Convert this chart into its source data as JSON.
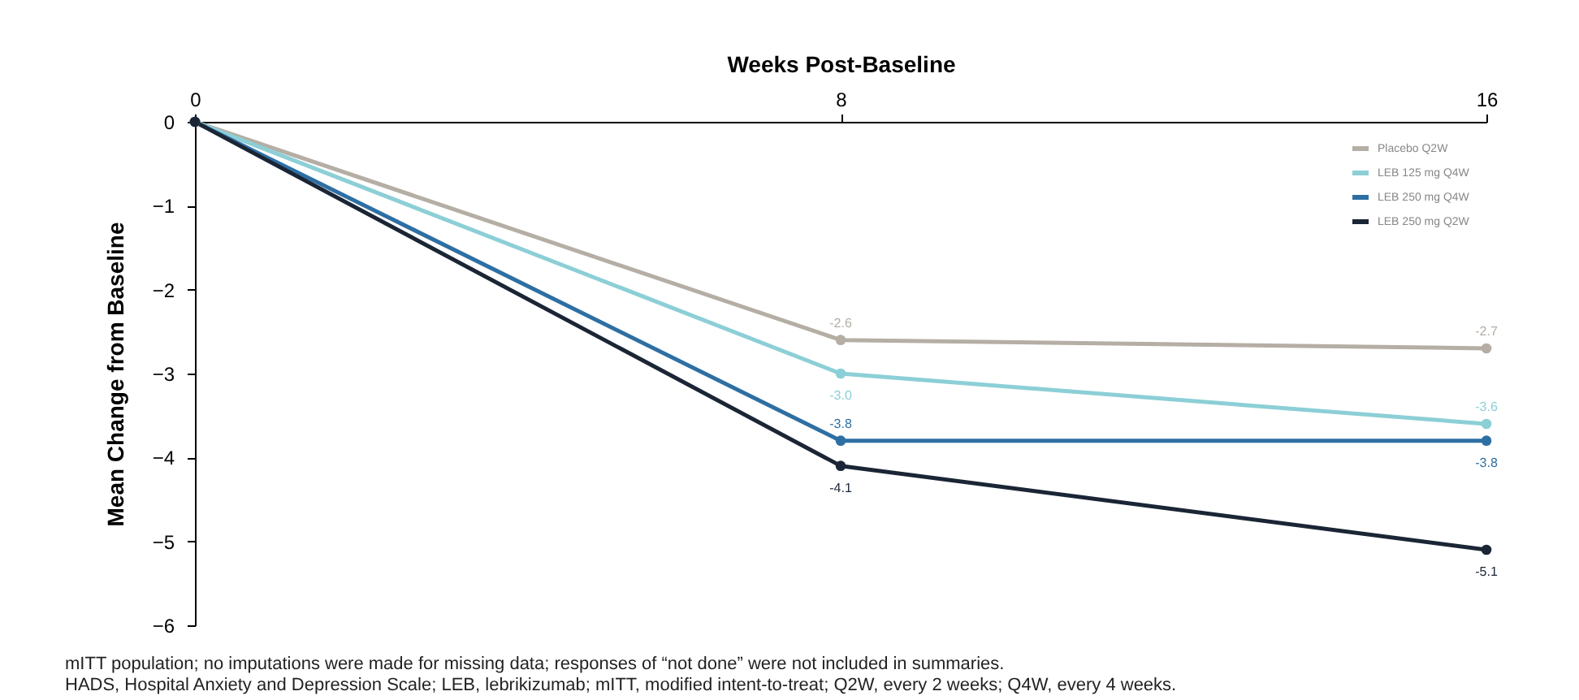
{
  "chart_data": {
    "type": "line",
    "xlabel": "Weeks Post-Baseline",
    "ylabel": "Mean Change from Baseline",
    "x": [
      0,
      8,
      16
    ],
    "xlim": [
      0,
      16
    ],
    "xticks": [
      0,
      8,
      16
    ],
    "ylim": [
      -6,
      0
    ],
    "yticks": [
      -6,
      -5,
      -4,
      -3,
      -2,
      -1,
      0
    ],
    "grid": false,
    "legend": "top right",
    "marker": "circle",
    "line_style": "solid",
    "series": [
      {
        "name": "Placebo Q2W",
        "color": "#b5aea5",
        "values": [
          0,
          -2.6,
          -2.7
        ],
        "value_labels": [
          null,
          "-2.6",
          "-2.7"
        ]
      },
      {
        "name": "LEB 125 mg Q4W",
        "color": "#8ccfd6",
        "values": [
          0,
          -3.0,
          -3.6
        ],
        "value_labels": [
          null,
          "-3.0",
          "-3.6"
        ]
      },
      {
        "name": "LEB 250 mg Q4W",
        "color": "#2e6fa3",
        "values": [
          0,
          -3.8,
          -3.8
        ],
        "value_labels": [
          null,
          "-3.8",
          "-3.8"
        ]
      },
      {
        "name": "LEB 250 mg Q2W",
        "color": "#1a2535",
        "values": [
          0,
          -4.1,
          -5.1
        ],
        "value_labels": [
          null,
          "-4.1",
          "-5.1"
        ]
      }
    ],
    "annotations": [
      "mITT population; no imputations were made for missing data; responses of “not done” were not included in summaries.",
      "HADS, Hospital Anxiety and Depression Scale; LEB, lebrikizumab; mITT, modified intent-to-treat; Q2W, every 2 weeks; Q4W, every 4 weeks."
    ]
  }
}
